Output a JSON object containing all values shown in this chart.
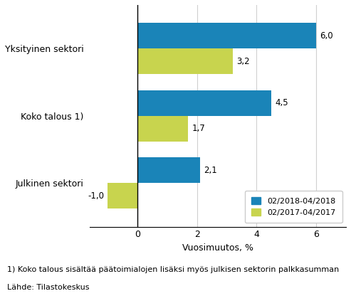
{
  "categories": [
    "Julkinen sektori",
    "Koko talous 1)",
    "Yksityinen sektori"
  ],
  "series": [
    {
      "label": "02/2018-04/2018",
      "values": [
        2.1,
        4.5,
        6.0
      ],
      "color": "#1a84b8"
    },
    {
      "label": "02/2017-04/2017",
      "values": [
        -1.0,
        1.7,
        3.2
      ],
      "color": "#c8d44e"
    }
  ],
  "xlabel": "Vuosimuutos, %",
  "xlim": [
    -1.6,
    7.0
  ],
  "xticks": [
    0,
    2,
    4,
    6
  ],
  "xtick_labels": [
    "0",
    "2",
    "4",
    "6"
  ],
  "bar_height": 0.38,
  "footnote1": "1) Koko talous sisältää päätoimialojen lisäksi myös julkisen sektorin palkkasumman",
  "footnote2": "Lähde: Tilastokeskus",
  "value_fontsize": 8.5,
  "label_fontsize": 9,
  "footnote_fontsize": 8,
  "legend_fontsize": 8,
  "axis_label_fontsize": 9,
  "background_color": "#ffffff",
  "grid_color": "#d0d0d0"
}
